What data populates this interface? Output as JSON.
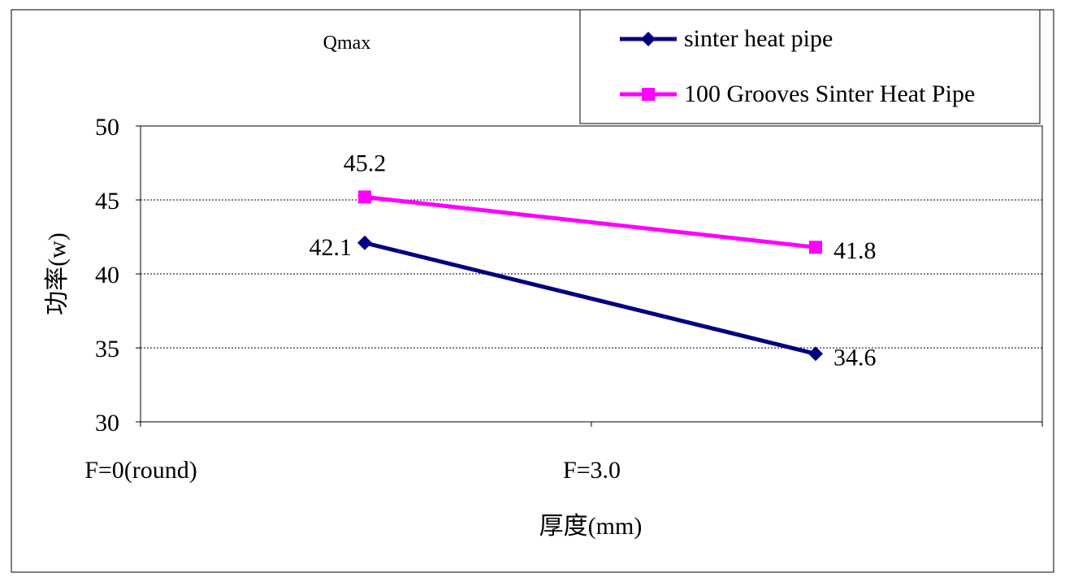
{
  "chart_data": {
    "type": "line",
    "title": "Qmax",
    "xlabel": "厚度(mm)",
    "ylabel": "功率(w)",
    "categories": [
      "F=0(round)",
      "F=3.0"
    ],
    "ylim": [
      30,
      50
    ],
    "yticks": [
      30,
      35,
      40,
      45,
      50
    ],
    "grid": "horizontal dashed",
    "legend_position": "top-right",
    "series": [
      {
        "name": "sinter heat pipe",
        "values": [
          42.1,
          34.6
        ],
        "labels": [
          "42.1",
          "34.6"
        ],
        "color": "#000080",
        "marker": "diamond"
      },
      {
        "name": "100 Grooves Sinter Heat Pipe",
        "values": [
          45.2,
          41.8
        ],
        "labels": [
          "45.2",
          "41.8"
        ],
        "color": "#FF00FF",
        "marker": "square"
      }
    ]
  }
}
